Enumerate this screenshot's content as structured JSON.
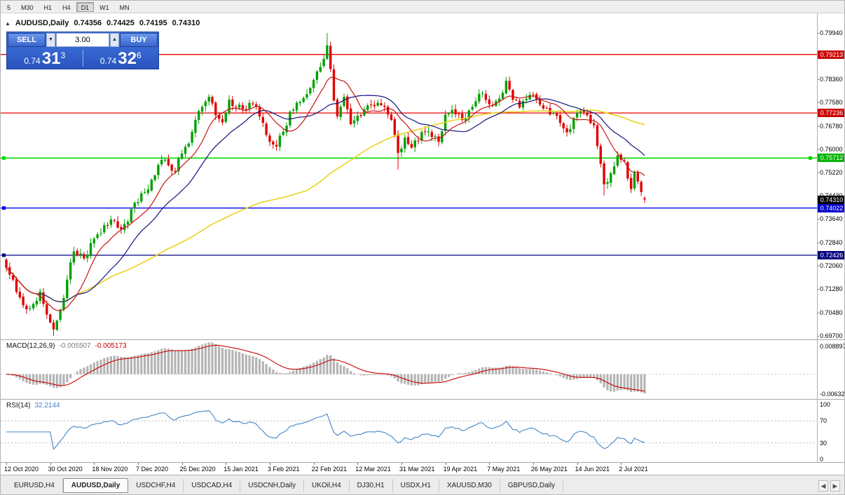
{
  "toolbar": {
    "timeframes": [
      {
        "label": "5",
        "active": false
      },
      {
        "label": "M30",
        "active": false
      },
      {
        "label": "H1",
        "active": false
      },
      {
        "label": "H4",
        "active": false
      },
      {
        "label": "D1",
        "active": true
      },
      {
        "label": "W1",
        "active": false
      },
      {
        "label": "MN",
        "active": false
      }
    ]
  },
  "icons": {
    "panel_toggle": "▲",
    "volume_down": "▼",
    "volume_up": "▲",
    "tab_scroll_left": "◀",
    "tab_scroll_right": "▶"
  },
  "chart": {
    "header": {
      "symbol": "AUDUSD,Daily",
      "open": "0.74356",
      "high": "0.74425",
      "low": "0.74195",
      "close": "0.74310"
    },
    "trade_panel": {
      "sell_label": "SELL",
      "buy_label": "BUY",
      "volume": "3.00",
      "sell_price_base": "0.74",
      "sell_price_big": "31",
      "sell_price_sup": "3",
      "buy_price_base": "0.74",
      "buy_price_big": "32",
      "buy_price_sup": "6"
    },
    "y_axis_labels": [
      "0.79940",
      "0.79160",
      "0.78360",
      "0.77580",
      "0.76780",
      "0.76000",
      "0.75220",
      "0.74430",
      "0.73640",
      "0.72840",
      "0.72060",
      "0.71280",
      "0.70480",
      "0.69700"
    ],
    "x_axis_labels": [
      "12 Oct 2020",
      "30 Oct 2020",
      "18 Nov 2020",
      "7 Dec 2020",
      "25 Dec 2020",
      "15 Jan 2021",
      "3 Feb 2021",
      "22 Feb 2021",
      "12 Mar 2021",
      "31 Mar 2021",
      "19 Apr 2021",
      "7 May 2021",
      "26 May 2021",
      "14 Jun 2021",
      "2 Jul 2021"
    ],
    "hlines": [
      {
        "price": 0.79213,
        "label": "0.79213",
        "color": "#ee0000",
        "badge": "#cc0000",
        "width": 1.3,
        "handles": []
      },
      {
        "price": 0.77236,
        "label": "0.77236",
        "color": "#ee0000",
        "badge": "#cc0000",
        "width": 1.3,
        "handles": []
      },
      {
        "price": 0.75712,
        "label": "0.75712",
        "color": "#00d800",
        "badge": "#00b400",
        "width": 1.6,
        "handles": [
          "left",
          "right"
        ]
      },
      {
        "price": 0.74022,
        "label": "0.74022",
        "color": "#0000e6",
        "badge": "#0000cc",
        "width": 1.3,
        "handles": [
          "left"
        ]
      },
      {
        "price": 0.72426,
        "label": "0.72426",
        "color": "#000080",
        "badge": "#000080",
        "width": 1.3,
        "handles": [
          "left"
        ]
      }
    ],
    "current_price": {
      "label": "0.74310",
      "price": 0.7431,
      "badge": "#000000"
    }
  },
  "macd_panel": {
    "title": "MACD(12,26,9)",
    "main_value": "-0.005507",
    "signal_value": "-0.005173",
    "axis_top": "0.008897",
    "axis_bottom": "-0.00632",
    "histogram_color": "#b4b4b4",
    "signal_color": "#cc0000"
  },
  "rsi_panel": {
    "title": "RSI(14)",
    "value": "32.2144",
    "line_color": "#4285c8",
    "levels": [
      70,
      30
    ],
    "axis_labels": [
      {
        "v": 100,
        "label": "100"
      },
      {
        "v": 70,
        "label": "70"
      },
      {
        "v": 30,
        "label": "30"
      },
      {
        "v": 0,
        "label": "0"
      }
    ]
  },
  "tabs": [
    {
      "label": "EURUSD,H4",
      "active": false
    },
    {
      "label": "AUDUSD,Daily",
      "active": true
    },
    {
      "label": "USDCHF,H4",
      "active": false
    },
    {
      "label": "USDCAD,H4",
      "active": false
    },
    {
      "label": "USDCNH,Daily",
      "active": false
    },
    {
      "label": "UKOil,H4",
      "active": false
    },
    {
      "label": "DJ30,H1",
      "active": false
    },
    {
      "label": "USDX,H1",
      "active": false
    },
    {
      "label": "XAUUSD,M30",
      "active": false
    },
    {
      "label": "GBPUSD,Daily",
      "active": false
    }
  ],
  "chart_data": {
    "type": "candlestick",
    "symbol": "AUDUSD",
    "timeframe": "Daily",
    "title": "AUDUSD,Daily",
    "ohlc_current": {
      "open": 0.74356,
      "high": 0.74425,
      "low": 0.74195,
      "close": 0.7431
    },
    "bars_total": 190,
    "ylim": [
      0.697,
      0.7994
    ],
    "up_color": "#00a000",
    "down_color": "#e00000",
    "x_tick_labels": [
      "12 Oct 2020",
      "30 Oct 2020",
      "18 Nov 2020",
      "7 Dec 2020",
      "25 Dec 2020",
      "15 Jan 2021",
      "3 Feb 2021",
      "22 Feb 2021",
      "12 Mar 2021",
      "31 Mar 2021",
      "19 Apr 2021",
      "7 May 2021",
      "26 May 2021",
      "14 Jun 2021",
      "2 Jul 2021"
    ],
    "bars_per_x_tick": 13,
    "close_keypoints": [
      [
        0,
        0.72
      ],
      [
        2,
        0.716
      ],
      [
        4,
        0.71
      ],
      [
        6,
        0.706
      ],
      [
        8,
        0.7078
      ],
      [
        10,
        0.712
      ],
      [
        12,
        0.7042
      ],
      [
        14,
        0.6992
      ],
      [
        16,
        0.7058
      ],
      [
        18,
        0.716
      ],
      [
        20,
        0.7255
      ],
      [
        23,
        0.7232
      ],
      [
        26,
        0.7298
      ],
      [
        29,
        0.7344
      ],
      [
        32,
        0.736
      ],
      [
        34,
        0.733
      ],
      [
        36,
        0.7356
      ],
      [
        38,
        0.742
      ],
      [
        41,
        0.7455
      ],
      [
        43,
        0.7498
      ],
      [
        46,
        0.7565
      ],
      [
        48,
        0.7546
      ],
      [
        50,
        0.7524
      ],
      [
        52,
        0.7586
      ],
      [
        54,
        0.762
      ],
      [
        56,
        0.77
      ],
      [
        58,
        0.7744
      ],
      [
        60,
        0.7778
      ],
      [
        62,
        0.7716
      ],
      [
        64,
        0.7692
      ],
      [
        66,
        0.7768
      ],
      [
        68,
        0.7744
      ],
      [
        70,
        0.7736
      ],
      [
        72,
        0.7758
      ],
      [
        74,
        0.7744
      ],
      [
        76,
        0.769
      ],
      [
        78,
        0.7626
      ],
      [
        80,
        0.761
      ],
      [
        82,
        0.766
      ],
      [
        84,
        0.7728
      ],
      [
        86,
        0.7758
      ],
      [
        88,
        0.7774
      ],
      [
        90,
        0.7808
      ],
      [
        92,
        0.7864
      ],
      [
        94,
        0.7906
      ],
      [
        95,
        0.7952
      ],
      [
        96,
        0.7872
      ],
      [
        97,
        0.7766
      ],
      [
        98,
        0.7712
      ],
      [
        100,
        0.7778
      ],
      [
        102,
        0.7686
      ],
      [
        104,
        0.7714
      ],
      [
        106,
        0.7736
      ],
      [
        108,
        0.775
      ],
      [
        110,
        0.7758
      ],
      [
        112,
        0.7744
      ],
      [
        114,
        0.77
      ],
      [
        116,
        0.7588
      ],
      [
        118,
        0.764
      ],
      [
        120,
        0.7606
      ],
      [
        122,
        0.763
      ],
      [
        124,
        0.766
      ],
      [
        126,
        0.7642
      ],
      [
        128,
        0.7626
      ],
      [
        130,
        0.7718
      ],
      [
        132,
        0.7734
      ],
      [
        134,
        0.772
      ],
      [
        136,
        0.7706
      ],
      [
        138,
        0.7744
      ],
      [
        140,
        0.7788
      ],
      [
        142,
        0.7768
      ],
      [
        144,
        0.7748
      ],
      [
        146,
        0.7772
      ],
      [
        148,
        0.7832
      ],
      [
        150,
        0.7768
      ],
      [
        152,
        0.7742
      ],
      [
        154,
        0.7772
      ],
      [
        156,
        0.7786
      ],
      [
        158,
        0.7752
      ],
      [
        160,
        0.774
      ],
      [
        162,
        0.7724
      ],
      [
        164,
        0.769
      ],
      [
        166,
        0.7658
      ],
      [
        168,
        0.7706
      ],
      [
        170,
        0.7732
      ],
      [
        172,
        0.7716
      ],
      [
        174,
        0.7682
      ],
      [
        175,
        0.7612
      ],
      [
        176,
        0.7552
      ],
      [
        177,
        0.7482
      ],
      [
        179,
        0.752
      ],
      [
        181,
        0.758
      ],
      [
        183,
        0.756
      ],
      [
        184,
        0.7502
      ],
      [
        185,
        0.7466
      ],
      [
        186,
        0.7522
      ],
      [
        187,
        0.7492
      ],
      [
        188,
        0.7456
      ],
      [
        189,
        0.7431
      ]
    ],
    "extremes": [
      {
        "bar": 14,
        "low": 0.697
      },
      {
        "bar": 95,
        "high": 0.7994
      },
      {
        "bar": 116,
        "low": 0.7532
      },
      {
        "bar": 148,
        "high": 0.7845
      },
      {
        "bar": 177,
        "low": 0.7445
      }
    ],
    "support_resistance_lines": [
      0.79213,
      0.77236,
      0.75712,
      0.74022,
      0.72426
    ],
    "moving_averages": [
      {
        "name": "slow",
        "period": 90,
        "color": "#e8d41e"
      },
      {
        "name": "mid",
        "period": 22,
        "color": "#14147e"
      },
      {
        "name": "fast",
        "period": 10,
        "color": "#c81414"
      }
    ],
    "indicators": [
      {
        "name": "MACD",
        "params": [
          12,
          26,
          9
        ],
        "current_main": -0.005507,
        "current_signal": -0.005173,
        "scale_max": 0.008897,
        "scale_min": -0.00632
      },
      {
        "name": "RSI",
        "params": [
          14
        ],
        "current": 32.2144,
        "scale": [
          0,
          100
        ],
        "levels": [
          30,
          70
        ]
      }
    ]
  }
}
